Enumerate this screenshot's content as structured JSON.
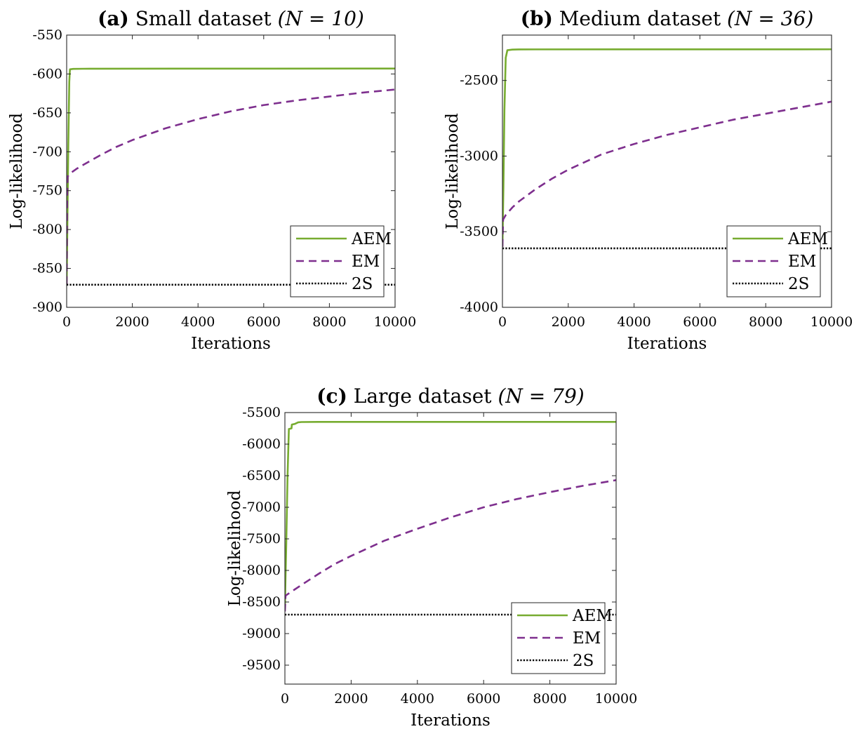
{
  "chart_data": [
    {
      "type": "line",
      "title_prefix": "(a)",
      "title_text": "Small dataset",
      "title_math": "(N = 10)",
      "xlabel": "Iterations",
      "ylabel": "Log-likelihood",
      "xlim": [
        0,
        10000
      ],
      "ylim": [
        -900,
        -550
      ],
      "xticks": [
        0,
        2000,
        4000,
        6000,
        8000,
        10000
      ],
      "yticks": [
        -550,
        -600,
        -650,
        -700,
        -750,
        -800,
        -850,
        -900
      ],
      "grid": false,
      "legend_position": "bottom-right",
      "series": [
        {
          "name": "AEM",
          "color": "#77ac30",
          "style": "solid",
          "x": [
            0,
            20,
            50,
            80,
            100,
            200,
            500,
            1000,
            10000
          ],
          "y": [
            -870,
            -800,
            -690,
            -610,
            -594,
            -593.5,
            -593.3,
            -593.2,
            -593
          ]
        },
        {
          "name": "EM",
          "color": "#7e2f8e",
          "style": "dashed",
          "x": [
            0,
            15,
            30,
            100,
            300,
            500,
            1000,
            1500,
            2000,
            3000,
            4000,
            5000,
            6000,
            7000,
            8000,
            9000,
            10000
          ],
          "y": [
            -870,
            -760,
            -732,
            -728,
            -722,
            -717,
            -705,
            -694,
            -685,
            -670,
            -658,
            -648,
            -640,
            -634,
            -629,
            -624,
            -620
          ]
        },
        {
          "name": "2S",
          "color": "#000000",
          "style": "dotted",
          "x": [
            0,
            10000
          ],
          "y": [
            -871,
            -871
          ]
        }
      ]
    },
    {
      "type": "line",
      "title_prefix": "(b)",
      "title_text": "Medium dataset",
      "title_math": "(N = 36)",
      "xlabel": "Iterations",
      "ylabel": "Log-likelihood",
      "xlim": [
        0,
        10000
      ],
      "ylim": [
        -4000,
        -2200
      ],
      "xticks": [
        0,
        2000,
        4000,
        6000,
        8000,
        10000
      ],
      "yticks": [
        -2500,
        -3000,
        -3500,
        -4000
      ],
      "grid": false,
      "legend_position": "bottom-right",
      "series": [
        {
          "name": "AEM",
          "color": "#77ac30",
          "style": "solid",
          "x": [
            0,
            30,
            60,
            100,
            150,
            300,
            500,
            1000,
            10000
          ],
          "y": [
            -3600,
            -3200,
            -2700,
            -2350,
            -2300,
            -2296,
            -2295,
            -2294.5,
            -2294
          ]
        },
        {
          "name": "EM",
          "color": "#7e2f8e",
          "style": "dashed",
          "x": [
            0,
            20,
            100,
            300,
            500,
            1000,
            1500,
            2000,
            3000,
            4000,
            5000,
            6000,
            7000,
            8000,
            9000,
            10000
          ],
          "y": [
            -3600,
            -3420,
            -3390,
            -3340,
            -3300,
            -3220,
            -3150,
            -3090,
            -2990,
            -2920,
            -2860,
            -2810,
            -2760,
            -2720,
            -2680,
            -2640
          ]
        },
        {
          "name": "2S",
          "color": "#000000",
          "style": "dotted",
          "x": [
            0,
            10000
          ],
          "y": [
            -3610,
            -3610
          ]
        }
      ]
    },
    {
      "type": "line",
      "title_prefix": "(c)",
      "title_text": "Large dataset",
      "title_math": "(N = 79)",
      "xlabel": "Iterations",
      "ylabel": "Log-likelihood",
      "xlim": [
        0,
        10000
      ],
      "ylim": [
        -9800,
        -5500
      ],
      "xticks": [
        0,
        2000,
        4000,
        6000,
        8000,
        10000
      ],
      "yticks": [
        -5500,
        -6000,
        -6500,
        -7000,
        -7500,
        -8000,
        -8500,
        -9000,
        -9500
      ],
      "grid": false,
      "legend_position": "bottom-right",
      "series": [
        {
          "name": "AEM",
          "color": "#77ac30",
          "style": "solid",
          "x": [
            0,
            40,
            80,
            120,
            130,
            200,
            210,
            300,
            400,
            500,
            1000,
            10000
          ],
          "y": [
            -8600,
            -7600,
            -6500,
            -5760,
            -5760,
            -5750,
            -5690,
            -5680,
            -5655,
            -5650,
            -5648,
            -5648
          ]
        },
        {
          "name": "EM",
          "color": "#7e2f8e",
          "style": "dashed",
          "x": [
            0,
            20,
            100,
            300,
            500,
            1000,
            1500,
            2000,
            3000,
            4000,
            5000,
            6000,
            7000,
            8000,
            9000,
            10000
          ],
          "y": [
            -8650,
            -8400,
            -8370,
            -8300,
            -8230,
            -8060,
            -7900,
            -7770,
            -7530,
            -7340,
            -7160,
            -7000,
            -6870,
            -6760,
            -6660,
            -6570
          ]
        },
        {
          "name": "2S",
          "color": "#000000",
          "style": "dotted",
          "x": [
            0,
            10000
          ],
          "y": [
            -8700,
            -8700
          ]
        }
      ]
    }
  ]
}
